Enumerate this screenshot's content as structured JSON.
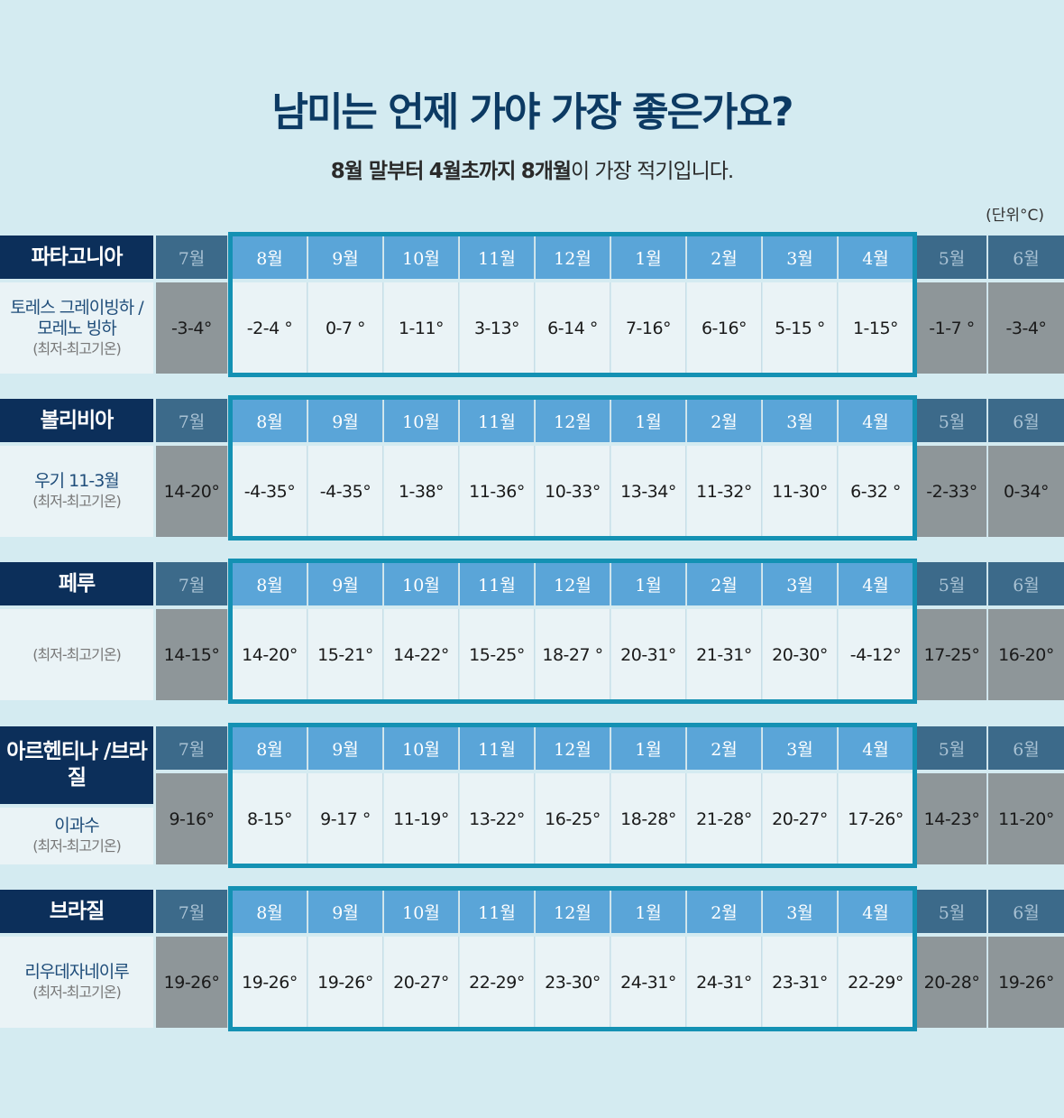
{
  "title": "남미는 언제 가야 가장 좋은가요?",
  "subtitle": {
    "bold1": "8월 말부터",
    "bold2": "4월초까지",
    "bold3": "8개월",
    "rest": "이 가장 적기입니다."
  },
  "unit_label": "(단위°C)",
  "months": [
    "7월",
    "8월",
    "9월",
    "10월",
    "11월",
    "12월",
    "1월",
    "2월",
    "3월",
    "4월",
    "5월",
    "6월"
  ],
  "colors": {
    "background": "#d4ebf1",
    "country_bg": "#0c2f5a",
    "month_header_off": "#3c6a8a",
    "month_header_on": "#5aa5d8",
    "value_off": "#8e9699",
    "value_on": "#eaf3f6",
    "highlight_frame": "#1491b3",
    "title": "#0c3a63"
  },
  "tables": [
    {
      "country": "파타고니아",
      "location": "토레스 그레이빙하 / 모레노 빙하",
      "note": "(최저-최고기온)",
      "temps": [
        "-3-4°",
        "-2-4 °",
        "0-7 °",
        "1-11°",
        "3-13°",
        "6-14 °",
        "7-16°",
        "6-16°",
        "5-15 °",
        "1-15°",
        "-1-7 °",
        "-3-4°"
      ]
    },
    {
      "country": "볼리비아",
      "location": "우기 11-3월",
      "note": "(최저-최고기온)",
      "temps": [
        "14-20°",
        "-4-35°",
        "-4-35°",
        "1-38°",
        "11-36°",
        "10-33°",
        "13-34°",
        "11-32°",
        "11-30°",
        "6-32 °",
        "-2-33°",
        "0-34°"
      ]
    },
    {
      "country": "페루",
      "location": "",
      "note": "(최저-최고기온)",
      "temps": [
        "14-15°",
        "14-20°",
        "15-21°",
        "14-22°",
        "15-25°",
        "18-27 °",
        "20-31°",
        "21-31°",
        "20-30°",
        "-4-12°",
        "17-25°",
        "16-20°"
      ]
    },
    {
      "country": "아르헨티나 /브라질",
      "location": "이과수",
      "note": "(최저-최고기온)",
      "temps": [
        "9-16°",
        "8-15°",
        "9-17 °",
        "11-19°",
        "13-22°",
        "16-25°",
        "18-28°",
        "21-28°",
        "20-27°",
        "17-26°",
        "14-23°",
        "11-20°"
      ]
    },
    {
      "country": "브라질",
      "location": "리우데자네이루",
      "note": "(최저-최고기온)",
      "temps": [
        "19-26°",
        "19-26°",
        "19-26°",
        "20-27°",
        "22-29°",
        "23-30°",
        "24-31°",
        "24-31°",
        "23-31°",
        "22-29°",
        "20-28°",
        "19-26°"
      ]
    }
  ]
}
